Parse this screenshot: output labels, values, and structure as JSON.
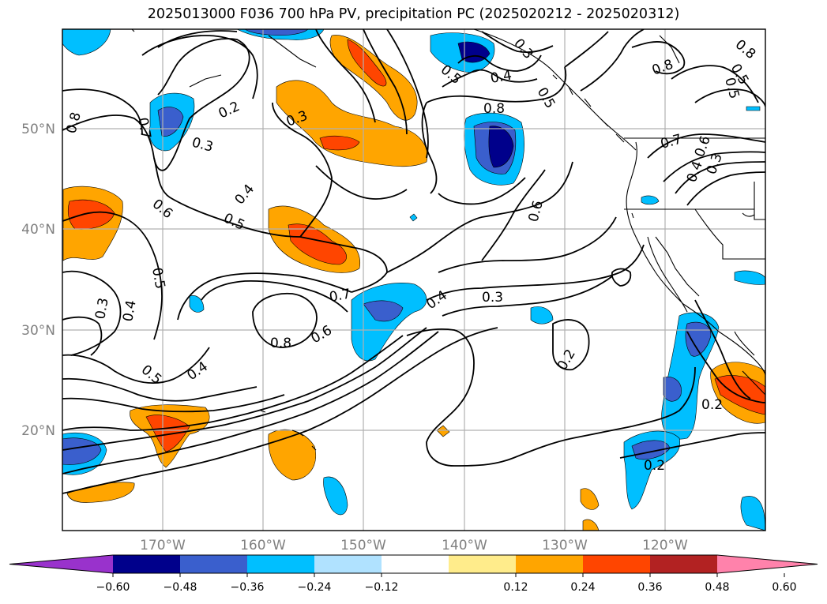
{
  "title": "2025013000 F036 700 hPa PV, precipitation PC (2025020212 - 2025020312)",
  "map": {
    "lat_labels": [
      {
        "value": 50,
        "text": "50°N"
      },
      {
        "value": 40,
        "text": "40°N"
      },
      {
        "value": 30,
        "text": "30°N"
      },
      {
        "value": 20,
        "text": "20°N"
      }
    ],
    "lon_labels": [
      {
        "value": -170,
        "text": "170°W"
      },
      {
        "value": -160,
        "text": "160°W"
      },
      {
        "value": -150,
        "text": "150°W"
      },
      {
        "value": -140,
        "text": "140°W"
      },
      {
        "value": -130,
        "text": "130°W"
      },
      {
        "value": -120,
        "text": "120°W"
      }
    ],
    "contour_labels": [
      "0.8",
      "0.7",
      "0.6",
      "0.5",
      "0.5",
      "0.3",
      "0.4",
      "0.3",
      "0.2",
      "0.3",
      "0.4",
      "0.5",
      "0.8",
      "0.7",
      "0.6",
      "0.4",
      "0.5",
      "0.3",
      "0.8",
      "0.5",
      "0.4",
      "0.6",
      "0.4",
      "0.3",
      "0.2",
      "0.8",
      "0.7",
      "0.6",
      "0.5",
      "0.4",
      "0.3",
      "0.2",
      "0.2",
      "0.8",
      "0.5"
    ]
  },
  "colorbar": {
    "colors": [
      "#9932cc",
      "#00008b",
      "#3a5fcd",
      "#00bfff",
      "#b0e2ff",
      "#ffffff",
      "#ffec8b",
      "#ffa500",
      "#ff4500",
      "#b22222",
      "#ff82ab"
    ],
    "tick_labels": [
      "−0.60",
      "−0.48",
      "−0.36",
      "−0.24",
      "−0.12",
      "0.12",
      "0.24",
      "0.36",
      "0.48",
      "0.60"
    ]
  }
}
